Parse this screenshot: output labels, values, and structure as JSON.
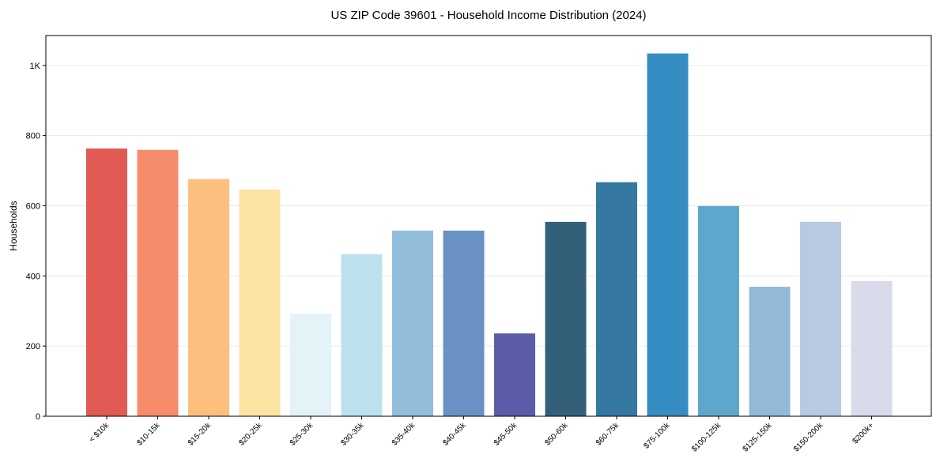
{
  "chart_data": {
    "type": "bar",
    "title": "US ZIP Code 39601 - Household Income Distribution (2024)",
    "xlabel": "",
    "ylabel": "Households",
    "ylim": [
      0,
      1085
    ],
    "yticks": [
      0,
      200,
      400,
      600,
      800,
      1000
    ],
    "ytick_labels": [
      "0",
      "200",
      "400",
      "600",
      "800",
      "1K"
    ],
    "grid": "horizontal",
    "categories": [
      "< $10k",
      "$10-15k",
      "$15-20k",
      "$20-25k",
      "$25-30k",
      "$30-35k",
      "$35-40k",
      "$40-45k",
      "$45-50k",
      "$50-60k",
      "$60-75k",
      "$75-100k",
      "$100-125k",
      "$125-150k",
      "$150-200k",
      "$200k+"
    ],
    "values": [
      763,
      759,
      676,
      646,
      293,
      462,
      529,
      529,
      236,
      554,
      667,
      1034,
      599,
      369,
      554,
      385
    ],
    "colors": [
      "#e05a53",
      "#f68c6a",
      "#fdbf7e",
      "#fee4a2",
      "#e4f3f8",
      "#bce0ee",
      "#92bddb",
      "#6a91c3",
      "#5b5ca8",
      "#336079",
      "#3579a3",
      "#368dc3",
      "#5ea7cc",
      "#93b9d9",
      "#b8cae2",
      "#d9dbeb"
    ]
  }
}
